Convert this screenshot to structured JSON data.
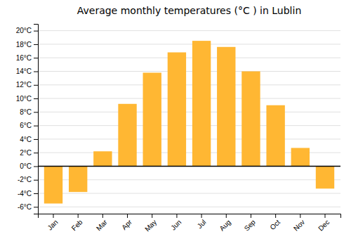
{
  "chart_data": {
    "type": "bar",
    "title": "Average monthly temperatures (°C ) in Lublin",
    "categories": [
      "Jan",
      "Feb",
      "Mar",
      "Apr",
      "May",
      "Jun",
      "Jul",
      "Aug",
      "Sep",
      "Oct",
      "Nov",
      "Dec"
    ],
    "values": [
      -5.5,
      -3.8,
      2.2,
      9.2,
      13.8,
      16.8,
      18.5,
      17.6,
      14.0,
      9.0,
      2.7,
      -3.3
    ],
    "color": "#FFB733",
    "ylim": [
      -7,
      21
    ],
    "yticks": [
      {
        "value": -6,
        "label": "-6°C"
      },
      {
        "value": -4,
        "label": "-4°C"
      },
      {
        "value": -2,
        "label": "-2°C"
      },
      {
        "value": 0,
        "label": "0°C"
      },
      {
        "value": 2,
        "label": "2°C"
      },
      {
        "value": 4,
        "label": "4°C"
      },
      {
        "value": 6,
        "label": "6°C"
      },
      {
        "value": 8,
        "label": "8°C"
      },
      {
        "value": 10,
        "label": "10°C"
      },
      {
        "value": 12,
        "label": "12°C"
      },
      {
        "value": 14,
        "label": "14°C"
      },
      {
        "value": 16,
        "label": "16°C"
      },
      {
        "value": 18,
        "label": "18°C"
      },
      {
        "value": 20,
        "label": "20°C"
      }
    ],
    "grid": true
  }
}
